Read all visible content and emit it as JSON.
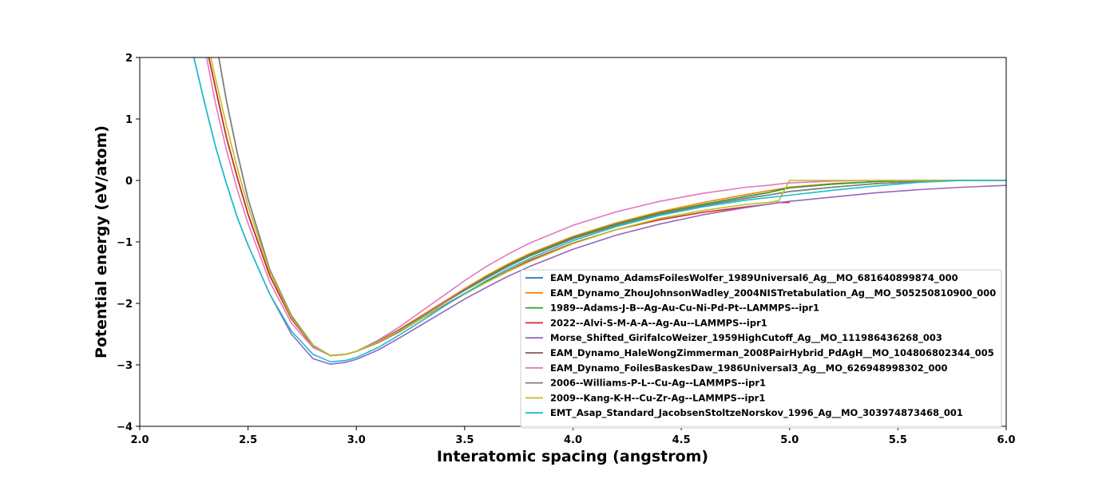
{
  "chart_data": {
    "type": "line",
    "xlabel": "Interatomic spacing (angstrom)",
    "ylabel": "Potential energy (eV/atom)",
    "xlim": [
      2.0,
      6.0
    ],
    "ylim": [
      -4,
      2
    ],
    "xticks": [
      "2.0",
      "2.5",
      "3.0",
      "3.5",
      "4.0",
      "4.5",
      "5.0",
      "5.5",
      "6.0"
    ],
    "yticks": [
      "2",
      "1",
      "0",
      "−1",
      "−2",
      "−3",
      "−4"
    ],
    "grid": false,
    "legend_position": "lower-right",
    "x": [
      2.25,
      2.3,
      2.35,
      2.4,
      2.45,
      2.5,
      2.6,
      2.7,
      2.8,
      2.88,
      2.95,
      3.0,
      3.1,
      3.2,
      3.3,
      3.4,
      3.5,
      3.6,
      3.7,
      3.8,
      4.0,
      4.2,
      4.4,
      4.6,
      4.8,
      4.9,
      4.95,
      5.0,
      5.2,
      5.4,
      5.6,
      5.8,
      6.0
    ],
    "series": [
      {
        "name": "EAM_Dynamo_AdamsFoilesWolfer_1989Universal6_Ag__MO_681640899874_000",
        "color": "#1f77b4",
        "y": [
          null,
          2.3,
          1.5,
          0.7,
          0.05,
          -0.55,
          -1.55,
          -2.25,
          -2.7,
          -2.85,
          -2.83,
          -2.78,
          -2.62,
          -2.43,
          -2.22,
          -2.0,
          -1.78,
          -1.57,
          -1.38,
          -1.21,
          -0.93,
          -0.71,
          -0.53,
          -0.39,
          -0.26,
          -0.2,
          -0.16,
          -0.12,
          -0.06,
          -0.02,
          0.0,
          0.0,
          0.0
        ]
      },
      {
        "name": "EAM_Dynamo_ZhouJohnsonWadley_2004NISTretabulation_Ag__MO_505250810900_000",
        "color": "#ff7f0e",
        "y": [
          null,
          2.3,
          1.5,
          0.7,
          0.05,
          -0.55,
          -1.55,
          -2.25,
          -2.7,
          -2.85,
          -2.83,
          -2.78,
          -2.62,
          -2.42,
          -2.2,
          -1.98,
          -1.76,
          -1.55,
          -1.36,
          -1.19,
          -0.91,
          -0.69,
          -0.51,
          -0.36,
          -0.23,
          -0.17,
          -0.14,
          -0.11,
          -0.05,
          -0.02,
          0.0,
          0.0,
          0.0
        ]
      },
      {
        "name": "1989--Adams-J-B--Ag-Au-Cu-Ni-Pd-Pt--LAMMPS--ipr1",
        "color": "#2ca02c",
        "y": [
          null,
          2.3,
          1.5,
          0.7,
          0.05,
          -0.55,
          -1.55,
          -2.25,
          -2.7,
          -2.85,
          -2.83,
          -2.78,
          -2.62,
          -2.43,
          -2.22,
          -2.0,
          -1.78,
          -1.57,
          -1.38,
          -1.21,
          -0.93,
          -0.71,
          -0.53,
          -0.39,
          -0.26,
          -0.2,
          -0.16,
          -0.12,
          -0.06,
          -0.02,
          0.0,
          0.0,
          0.0
        ]
      },
      {
        "name": "2022--Alvi-S-M-A-A--Ag-Au--LAMMPS--ipr1",
        "color": "#d62728",
        "y": [
          null,
          2.3,
          1.5,
          0.7,
          0.05,
          -0.55,
          -1.55,
          -2.25,
          -2.7,
          -2.85,
          -2.83,
          -2.78,
          -2.64,
          -2.46,
          -2.25,
          -2.04,
          -1.84,
          -1.65,
          -1.47,
          -1.3,
          -1.02,
          -0.8,
          -0.64,
          -0.52,
          -0.43,
          -0.39,
          -0.36,
          -0.36,
          null,
          null,
          null,
          null,
          null
        ]
      },
      {
        "name": "Morse_Shifted_GirifalcoWeizer_1959HighCutoff_Ag__MO_111986436268_003",
        "color": "#9467bd",
        "y": [
          2.0,
          1.25,
          0.55,
          -0.05,
          -0.6,
          -1.05,
          -1.85,
          -2.5,
          -2.9,
          -2.99,
          -2.96,
          -2.91,
          -2.76,
          -2.56,
          -2.35,
          -2.14,
          -1.93,
          -1.74,
          -1.56,
          -1.4,
          -1.12,
          -0.89,
          -0.71,
          -0.56,
          -0.44,
          -0.39,
          -0.36,
          -0.34,
          -0.27,
          -0.2,
          -0.15,
          -0.11,
          -0.08
        ]
      },
      {
        "name": "EAM_Dynamo_HaleWongZimmerman_2008PairHybrid_PdAgH__MO_104806802344_005",
        "color": "#8c564b",
        "y": [
          null,
          null,
          2.3,
          1.3,
          0.45,
          -0.3,
          -1.45,
          -2.2,
          -2.68,
          -2.85,
          -2.83,
          -2.78,
          -2.62,
          -2.43,
          -2.22,
          -2.0,
          -1.79,
          -1.59,
          -1.4,
          -1.23,
          -0.95,
          -0.73,
          -0.55,
          -0.41,
          -0.29,
          -0.24,
          -0.21,
          -0.18,
          -0.11,
          -0.05,
          -0.02,
          0.0,
          0.0
        ]
      },
      {
        "name": "EAM_Dynamo_FoilesBaskesDaw_1986Universal3_Ag__MO_626948998302_000",
        "color": "#e377c2",
        "y": [
          null,
          2.15,
          1.25,
          0.5,
          -0.15,
          -0.7,
          -1.65,
          -2.32,
          -2.72,
          -2.85,
          -2.83,
          -2.78,
          -2.6,
          -2.38,
          -2.13,
          -1.88,
          -1.63,
          -1.4,
          -1.2,
          -1.02,
          -0.73,
          -0.51,
          -0.34,
          -0.21,
          -0.11,
          -0.08,
          -0.06,
          -0.04,
          -0.01,
          0.0,
          0.0,
          0.0,
          0.0
        ]
      },
      {
        "name": "2006--Williams-P-L--Cu-Ag--LAMMPS--ipr1",
        "color": "#7f7f7f",
        "y": [
          null,
          null,
          2.3,
          1.3,
          0.45,
          -0.3,
          -1.45,
          -2.2,
          -2.68,
          -2.85,
          -2.83,
          -2.78,
          -2.62,
          -2.43,
          -2.22,
          -2.0,
          -1.79,
          -1.59,
          -1.4,
          -1.23,
          -0.95,
          -0.73,
          -0.55,
          -0.41,
          -0.29,
          -0.24,
          -0.21,
          -0.18,
          -0.11,
          -0.05,
          -0.02,
          0.0,
          0.0
        ]
      },
      {
        "name": "2009--Kang-K-H--Cu-Zr-Ag--LAMMPS--ipr1",
        "color": "#bcbd22",
        "y": [
          null,
          2.45,
          1.65,
          0.9,
          0.2,
          -0.42,
          -1.48,
          -2.23,
          -2.69,
          -2.85,
          -2.83,
          -2.78,
          -2.63,
          -2.45,
          -2.25,
          -2.05,
          -1.85,
          -1.66,
          -1.48,
          -1.32,
          -1.03,
          -0.8,
          -0.62,
          -0.49,
          -0.39,
          -0.36,
          -0.33,
          0.0,
          0.0,
          0.0,
          0.0,
          0.0,
          0.0
        ]
      },
      {
        "name": "EMT_Asap_Standard_JacobsenStoltzeNorskov_1996_Ag__MO_303974873468_001",
        "color": "#17becf",
        "y": [
          2.0,
          1.25,
          0.55,
          -0.05,
          -0.6,
          -1.05,
          -1.85,
          -2.45,
          -2.83,
          -2.95,
          -2.93,
          -2.88,
          -2.72,
          -2.51,
          -2.29,
          -2.06,
          -1.84,
          -1.63,
          -1.44,
          -1.27,
          -0.98,
          -0.75,
          -0.57,
          -0.43,
          -0.32,
          -0.28,
          -0.26,
          -0.24,
          -0.16,
          -0.09,
          -0.03,
          0.0,
          0.0
        ]
      }
    ]
  }
}
